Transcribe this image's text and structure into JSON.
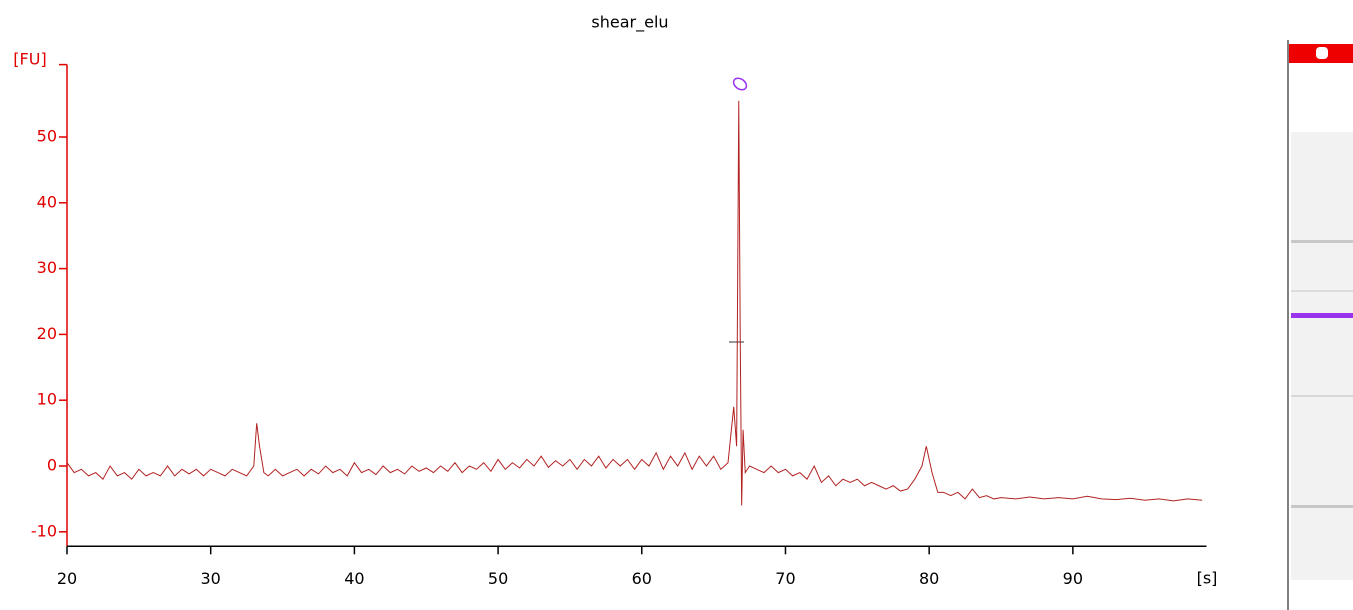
{
  "chart_data": {
    "type": "line",
    "title": "shear_elu",
    "y_label": "[FU]",
    "x_label": "[s]",
    "xlim": [
      20,
      99.3
    ],
    "ylim": [
      -12.2,
      61
    ],
    "xticks": [
      20,
      30,
      40,
      50,
      60,
      70,
      80,
      90
    ],
    "yticks": [
      -10,
      0,
      10,
      20,
      30,
      40,
      50
    ],
    "x": [
      20,
      20.5,
      21,
      21.5,
      22,
      22.5,
      23,
      23.5,
      24,
      24.5,
      25,
      25.5,
      26,
      26.5,
      27,
      27.5,
      28,
      28.5,
      29,
      29.5,
      30,
      30.5,
      31,
      31.5,
      32,
      32.5,
      33,
      33.2,
      33.4,
      33.7,
      34,
      34.5,
      35,
      35.5,
      36,
      36.5,
      37,
      37.5,
      38,
      38.5,
      39,
      39.5,
      40,
      40.5,
      41,
      41.5,
      42,
      42.5,
      43,
      43.5,
      44,
      44.5,
      45,
      45.5,
      46,
      46.5,
      47,
      47.5,
      48,
      48.5,
      49,
      49.5,
      50,
      50.5,
      51,
      51.5,
      52,
      52.5,
      53,
      53.5,
      54,
      54.5,
      55,
      55.5,
      56,
      56.5,
      57,
      57.5,
      58,
      58.5,
      59,
      59.5,
      60,
      60.5,
      61,
      61.5,
      62,
      62.5,
      63,
      63.5,
      64,
      64.5,
      65,
      65.5,
      66,
      66.4,
      66.6,
      66.75,
      66.85,
      66.95,
      67.05,
      67.2,
      67.5,
      68,
      68.5,
      69,
      69.5,
      70,
      70.5,
      71,
      71.5,
      72,
      72.5,
      73,
      73.5,
      74,
      74.5,
      75,
      75.5,
      76,
      76.5,
      77,
      77.5,
      78,
      78.5,
      79,
      79.5,
      79.8,
      80.2,
      80.6,
      81,
      81.5,
      82,
      82.5,
      83,
      83.5,
      84,
      84.5,
      85,
      86,
      87,
      88,
      89,
      90,
      91,
      92,
      93,
      94,
      95,
      96,
      97,
      98,
      99
    ],
    "series": [
      {
        "color": "#b22222",
        "values": [
          0.5,
          -1,
          -0.5,
          -1.5,
          -1,
          -2,
          0,
          -1.5,
          -1,
          -2,
          -0.5,
          -1.5,
          -1,
          -1.5,
          0,
          -1.5,
          -0.5,
          -1.2,
          -0.5,
          -1.5,
          -0.5,
          -1,
          -1.5,
          -0.5,
          -1,
          -1.5,
          0,
          6.5,
          3,
          -1,
          -1.5,
          -0.5,
          -1.5,
          -1,
          -0.5,
          -1.5,
          -0.5,
          -1.2,
          0,
          -1,
          -0.5,
          -1.5,
          0.5,
          -1,
          -0.5,
          -1.3,
          0,
          -1,
          -0.5,
          -1.2,
          0,
          -0.8,
          -0.3,
          -1,
          0,
          -0.8,
          0.5,
          -1,
          0,
          -0.5,
          0.5,
          -0.8,
          1,
          -0.5,
          0.5,
          -0.3,
          1,
          0,
          1.5,
          -0.2,
          0.8,
          0,
          1,
          -0.5,
          1,
          0,
          1.5,
          -0.3,
          1,
          0,
          1,
          -0.5,
          1,
          0,
          2,
          -0.5,
          1.5,
          0,
          2,
          -0.5,
          1.5,
          0,
          1.5,
          -0.5,
          0.5,
          9,
          3,
          55.5,
          20,
          -6,
          5.5,
          -1,
          0,
          -0.5,
          -1,
          0,
          -1,
          -0.5,
          -1.5,
          -1,
          -2,
          0,
          -2.5,
          -1.5,
          -3,
          -2,
          -2.5,
          -2,
          -3,
          -2.5,
          -3,
          -3.5,
          -3,
          -3.8,
          -3.5,
          -2,
          0,
          3,
          -1,
          -4,
          -4,
          -4.5,
          -4,
          -5,
          -3.5,
          -4.8,
          -4.5,
          -5,
          -4.8,
          -5,
          -4.7,
          -5,
          -4.8,
          -5,
          -4.6,
          -5,
          -5.1,
          -4.9,
          -5.2,
          -5,
          -5.3,
          -5,
          -5.2
        ]
      }
    ],
    "y_axis_color": "#e00000",
    "x_axis_color": "#000000"
  }
}
